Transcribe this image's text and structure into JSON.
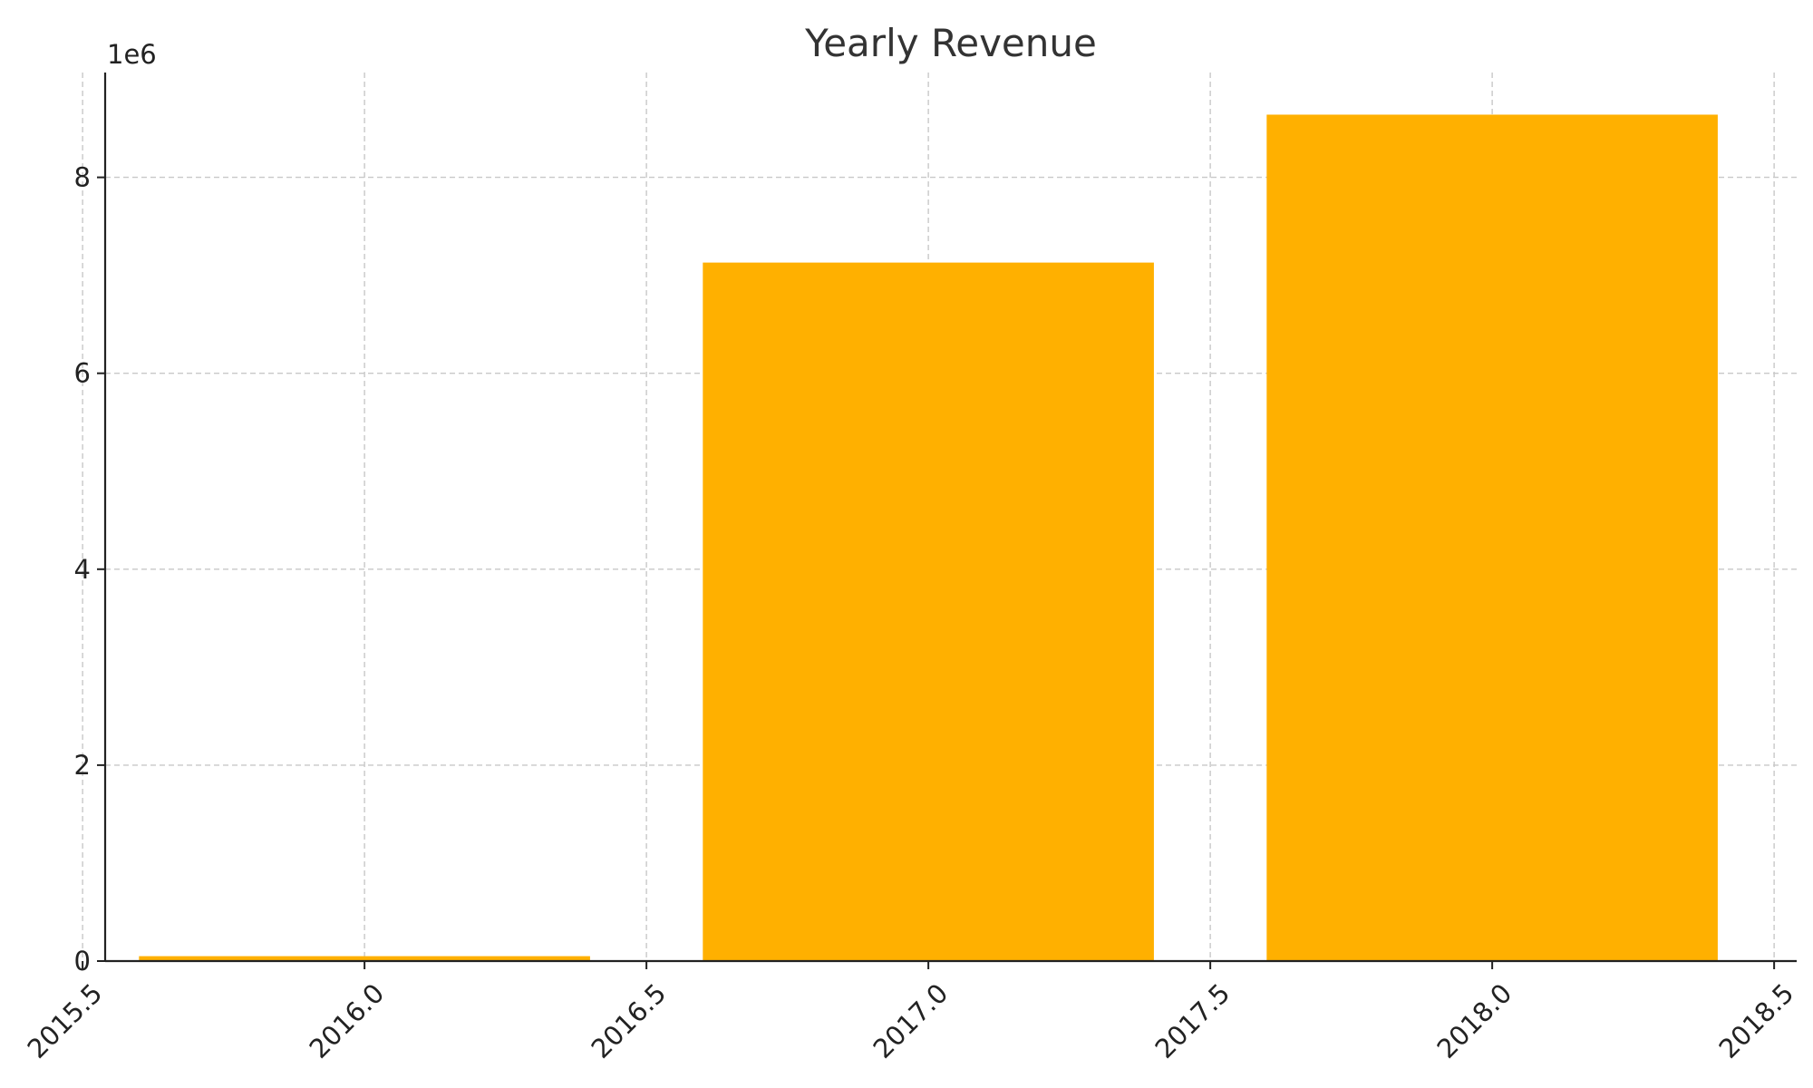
{
  "chart_data": {
    "type": "bar",
    "title": "Yearly Revenue",
    "xlabel": "",
    "ylabel": "",
    "x": [
      2016,
      2017,
      2018
    ],
    "values": [
      50000,
      7130000,
      8640000
    ],
    "bar_width": 0.8,
    "xlim": [
      2015.54,
      2018.54
    ],
    "ylim": [
      0,
      9070000
    ],
    "x_ticks": [
      2015.5,
      2016.0,
      2016.5,
      2017.0,
      2017.5,
      2018.0,
      2018.5
    ],
    "x_tick_labels": [
      "2015.5",
      "2016.0",
      "2016.5",
      "2017.0",
      "2017.5",
      "2018.0",
      "2018.5"
    ],
    "y_ticks": [
      0,
      2000000,
      4000000,
      6000000,
      8000000
    ],
    "y_tick_labels": [
      "0",
      "2",
      "4",
      "6",
      "8"
    ],
    "y_offset_label": "1e6",
    "bar_color": "#FFB000",
    "grid": true,
    "x_tick_rotation_deg": 45
  }
}
